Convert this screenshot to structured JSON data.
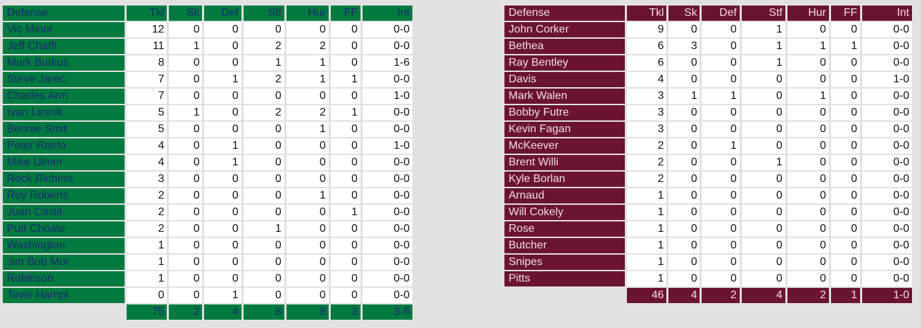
{
  "colors": {
    "home": "#007a3f",
    "home_text": "#1a2b70",
    "away": "#6b1431",
    "away_text": "#f3dde1"
  },
  "left": {
    "headers": [
      "Defense",
      "Tkl",
      "Sk",
      "Def",
      "Stf",
      "Hur",
      "FF",
      "Int"
    ],
    "rows": [
      [
        "Vic Minor",
        "12",
        "0",
        "0",
        "0",
        "0",
        "0",
        "0-0"
      ],
      [
        "Jeff Chaffi",
        "11",
        "1",
        "0",
        "2",
        "2",
        "0",
        "0-0"
      ],
      [
        "Mark Butkus",
        "8",
        "0",
        "0",
        "1",
        "1",
        "0",
        "1-6"
      ],
      [
        "Steve Jarec",
        "7",
        "0",
        "1",
        "2",
        "1",
        "1",
        "0-0"
      ],
      [
        "Charles Arm",
        "7",
        "0",
        "0",
        "0",
        "0",
        "0",
        "1-0"
      ],
      [
        "Ivan Lesnik",
        "5",
        "1",
        "0",
        "2",
        "2",
        "1",
        "0-0"
      ],
      [
        "Bennie Smit",
        "5",
        "0",
        "0",
        "0",
        "1",
        "0",
        "0-0"
      ],
      [
        "Peter Raefo",
        "4",
        "0",
        "1",
        "0",
        "0",
        "0",
        "1-0"
      ],
      [
        "Mike Ulmer",
        "4",
        "0",
        "1",
        "0",
        "0",
        "0",
        "0-0"
      ],
      [
        "Rock Richmo",
        "3",
        "0",
        "0",
        "0",
        "0",
        "0",
        "0-0"
      ],
      [
        "Roy Roberts",
        "2",
        "0",
        "0",
        "0",
        "1",
        "0",
        "0-0"
      ],
      [
        "Juan Castil",
        "2",
        "0",
        "0",
        "0",
        "0",
        "1",
        "0-0"
      ],
      [
        "Putt Choate",
        "2",
        "0",
        "0",
        "1",
        "0",
        "0",
        "0-0"
      ],
      [
        "Washington",
        "1",
        "0",
        "0",
        "0",
        "0",
        "0",
        "0-0"
      ],
      [
        "Jim Bob Mor",
        "1",
        "0",
        "0",
        "0",
        "0",
        "0",
        "0-0"
      ],
      [
        "Robinson",
        "1",
        "0",
        "0",
        "0",
        "0",
        "0",
        "0-0"
      ],
      [
        "Tavie Hampt",
        "0",
        "0",
        "1",
        "0",
        "0",
        "0",
        "0-0"
      ]
    ],
    "totals": [
      "75",
      "2",
      "4",
      "8",
      "8",
      "3",
      "3-6"
    ]
  },
  "right": {
    "headers": [
      "Defense",
      "Tkl",
      "Sk",
      "Def",
      "Stf",
      "Hur",
      "FF",
      "Int"
    ],
    "rows": [
      [
        "John Corker",
        "9",
        "0",
        "0",
        "1",
        "0",
        "0",
        "0-0"
      ],
      [
        "Bethea",
        "6",
        "3",
        "0",
        "1",
        "1",
        "1",
        "0-0"
      ],
      [
        "Ray Bentley",
        "6",
        "0",
        "0",
        "1",
        "0",
        "0",
        "0-0"
      ],
      [
        "Davis",
        "4",
        "0",
        "0",
        "0",
        "0",
        "0",
        "1-0"
      ],
      [
        "Mark Walen",
        "3",
        "1",
        "1",
        "0",
        "1",
        "0",
        "0-0"
      ],
      [
        "Bobby Futre",
        "3",
        "0",
        "0",
        "0",
        "0",
        "0",
        "0-0"
      ],
      [
        "Kevin Fagan",
        "3",
        "0",
        "0",
        "0",
        "0",
        "0",
        "0-0"
      ],
      [
        "McKeever",
        "2",
        "0",
        "1",
        "0",
        "0",
        "0",
        "0-0"
      ],
      [
        "Brent Willi",
        "2",
        "0",
        "0",
        "1",
        "0",
        "0",
        "0-0"
      ],
      [
        "Kyle Borlan",
        "2",
        "0",
        "0",
        "0",
        "0",
        "0",
        "0-0"
      ],
      [
        "Arnaud",
        "1",
        "0",
        "0",
        "0",
        "0",
        "0",
        "0-0"
      ],
      [
        "Will Cokely",
        "1",
        "0",
        "0",
        "0",
        "0",
        "0",
        "0-0"
      ],
      [
        "Rose",
        "1",
        "0",
        "0",
        "0",
        "0",
        "0",
        "0-0"
      ],
      [
        "Butcher",
        "1",
        "0",
        "0",
        "0",
        "0",
        "0",
        "0-0"
      ],
      [
        "Snipes",
        "1",
        "0",
        "0",
        "0",
        "0",
        "0",
        "0-0"
      ],
      [
        "Pitts",
        "1",
        "0",
        "0",
        "0",
        "0",
        "0",
        "0-0"
      ]
    ],
    "totals": [
      "46",
      "4",
      "2",
      "4",
      "2",
      "1",
      "1-0"
    ]
  }
}
